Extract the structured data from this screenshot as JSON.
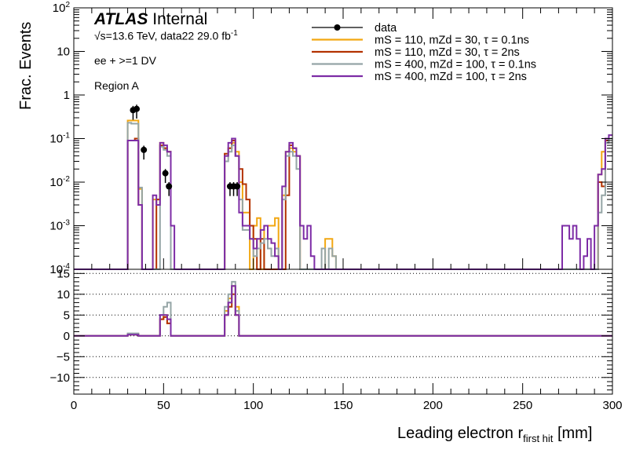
{
  "annotations": {
    "atlas": "ATLAS",
    "internal": "Internal",
    "sqrt_s": "√s=13.6 TeV, data22 29.0 fb",
    "lumi_sup": "-1",
    "selection": "ee + >=1 DV",
    "region": "Region A"
  },
  "legend": [
    {
      "text": "data",
      "color": "#000000",
      "kind": "marker"
    },
    {
      "text": "mS = 110, mZd = 30, τ = 0.1ns",
      "color": "#f2a712",
      "kind": "line"
    },
    {
      "text": "mS = 110, mZd = 30, τ = 2ns",
      "color": "#b33200",
      "kind": "line"
    },
    {
      "text": "mS = 400, mZd = 100, τ = 0.1ns",
      "color": "#95a5a6",
      "kind": "line"
    },
    {
      "text": "mS = 400, mZd = 100, τ = 2ns",
      "color": "#7d2ca6",
      "kind": "line"
    }
  ],
  "chart_data": [
    {
      "type": "line",
      "subtype": "step-histogram",
      "ylabel": "Frac. Events",
      "xlim": [
        0,
        300
      ],
      "ylim": [
        0.0001,
        100
      ],
      "yscale": "log",
      "bin_width": 2,
      "y_ticks": [
        "10^-4",
        "10^-3",
        "10^-2",
        "10^-1",
        "1",
        "10",
        "10^2"
      ],
      "data_points": [
        {
          "x": 32,
          "y": 0.45
        },
        {
          "x": 34,
          "y": 0.48
        },
        {
          "x": 38,
          "y": 0.055
        },
        {
          "x": 50,
          "y": 0.016
        },
        {
          "x": 52,
          "y": 0.008
        },
        {
          "x": 86,
          "y": 0.008
        },
        {
          "x": 88,
          "y": 0.008
        },
        {
          "x": 90,
          "y": 0.008
        }
      ],
      "series": [
        {
          "name": "mS = 110, mZd = 30, τ = 0.1ns",
          "color": "#f2a712",
          "bins": [
            [
              30,
              0.26
            ],
            [
              32,
              0.26
            ],
            [
              34,
              0.26
            ],
            [
              36,
              0.007
            ],
            [
              44,
              0.004
            ],
            [
              46,
              0.004
            ],
            [
              48,
              0.08
            ],
            [
              50,
              0.06
            ],
            [
              52,
              0.05
            ],
            [
              84,
              0.04
            ],
            [
              86,
              0.06
            ],
            [
              88,
              0.08
            ],
            [
              90,
              0.05
            ],
            [
              92,
              0.01
            ],
            [
              94,
              0.002
            ],
            [
              96,
              0.002
            ],
            [
              100,
              0.001
            ],
            [
              102,
              0.0015
            ],
            [
              106,
              0.001
            ],
            [
              108,
              0.001
            ],
            [
              110,
              0.001
            ],
            [
              112,
              0.0015
            ],
            [
              116,
              0.005
            ],
            [
              118,
              0.05
            ],
            [
              120,
              0.06
            ],
            [
              122,
              0.05
            ],
            [
              124,
              0.04
            ],
            [
              140,
              0.0005
            ],
            [
              142,
              0.0005
            ],
            [
              144,
              0.0002
            ],
            [
              292,
              0.015
            ],
            [
              294,
              0.05
            ],
            [
              296,
              0.1
            ],
            [
              298,
              0.1
            ]
          ]
        },
        {
          "name": "mS = 110, mZd = 30, τ = 2ns",
          "color": "#b33200",
          "bins": [
            [
              30,
              0.09
            ],
            [
              32,
              0.09
            ],
            [
              34,
              0.1
            ],
            [
              36,
              0.003
            ],
            [
              46,
              0.004
            ],
            [
              48,
              0.07
            ],
            [
              50,
              0.06
            ],
            [
              52,
              0.05
            ],
            [
              84,
              0.045
            ],
            [
              86,
              0.06
            ],
            [
              88,
              0.09
            ],
            [
              90,
              0.04
            ],
            [
              92,
              0.02
            ],
            [
              94,
              0.009
            ],
            [
              96,
              0.004
            ],
            [
              98,
              0.001
            ],
            [
              100,
              0.0005
            ],
            [
              104,
              0.0005
            ],
            [
              118,
              0.005
            ],
            [
              120,
              0.07
            ],
            [
              122,
              0.06
            ],
            [
              124,
              0.04
            ],
            [
              292,
              0.01
            ],
            [
              294,
              0.008
            ],
            [
              296,
              0.09
            ],
            [
              298,
              0.1
            ]
          ]
        },
        {
          "name": "mS = 400, mZd = 100, τ = 0.1ns",
          "color": "#95a5a6",
          "bins": [
            [
              30,
              0.23
            ],
            [
              32,
              0.22
            ],
            [
              34,
              0.22
            ],
            [
              36,
              0.0075
            ],
            [
              48,
              0.065
            ],
            [
              50,
              0.055
            ],
            [
              52,
              0.04
            ],
            [
              84,
              0.03
            ],
            [
              86,
              0.05
            ],
            [
              88,
              0.07
            ],
            [
              90,
              0.04
            ],
            [
              92,
              0.004
            ],
            [
              94,
              0.0008
            ],
            [
              96,
              0.0008
            ],
            [
              98,
              0.0005
            ],
            [
              100,
              0.0002
            ],
            [
              102,
              0.0003
            ],
            [
              104,
              0.0004
            ],
            [
              106,
              0.0005
            ],
            [
              108,
              0.0003
            ],
            [
              110,
              0.0002
            ],
            [
              112,
              0.0003
            ],
            [
              116,
              0.004
            ],
            [
              118,
              0.04
            ],
            [
              120,
              0.05
            ],
            [
              122,
              0.04
            ],
            [
              124,
              0.02
            ],
            [
              138,
              0.0003
            ],
            [
              142,
              0.0003
            ],
            [
              144,
              0.0002
            ],
            [
              292,
              0.002
            ],
            [
              294,
              0.005
            ],
            [
              296,
              0.08
            ],
            [
              298,
              0.1
            ]
          ]
        },
        {
          "name": "mS = 400, mZd = 100, τ = 2ns",
          "color": "#7d2ca6",
          "bins": [
            [
              30,
              0.09
            ],
            [
              32,
              0.09
            ],
            [
              34,
              0.09
            ],
            [
              36,
              0.003
            ],
            [
              44,
              0.005
            ],
            [
              46,
              0.003
            ],
            [
              48,
              0.08
            ],
            [
              50,
              0.07
            ],
            [
              52,
              0.05
            ],
            [
              54,
              0.001
            ],
            [
              84,
              0.04
            ],
            [
              86,
              0.08
            ],
            [
              88,
              0.1
            ],
            [
              90,
              0.04
            ],
            [
              92,
              0.002
            ],
            [
              94,
              0.001
            ],
            [
              96,
              0.001
            ],
            [
              98,
              0.0005
            ],
            [
              100,
              0.0003
            ],
            [
              102,
              0.0005
            ],
            [
              104,
              0.0008
            ],
            [
              106,
              0.001
            ],
            [
              108,
              0.0005
            ],
            [
              110,
              0.0004
            ],
            [
              112,
              0.0002
            ],
            [
              116,
              0.008
            ],
            [
              118,
              0.05
            ],
            [
              120,
              0.08
            ],
            [
              122,
              0.06
            ],
            [
              124,
              0.04
            ],
            [
              126,
              0.001
            ],
            [
              128,
              0.0005
            ],
            [
              130,
              0.001
            ],
            [
              132,
              0.0002
            ],
            [
              272,
              0.001
            ],
            [
              274,
              0.001
            ],
            [
              276,
              0.0005
            ],
            [
              278,
              0.001
            ],
            [
              280,
              0.0005
            ],
            [
              284,
              0.0002
            ],
            [
              286,
              0.0005
            ],
            [
              290,
              0.001
            ],
            [
              292,
              0.015
            ],
            [
              294,
              0.02
            ],
            [
              296,
              0.1
            ],
            [
              298,
              0.12
            ]
          ]
        }
      ]
    },
    {
      "type": "line",
      "subtype": "step-histogram",
      "xlabel": "Leading electron r",
      "xlabel_sub": "first hit",
      "xlabel_unit": "[mm]",
      "xlim": [
        0,
        300
      ],
      "ylim": [
        -14,
        16
      ],
      "x_ticks": [
        0,
        50,
        100,
        150,
        200,
        250,
        300
      ],
      "y_ticks": [
        -10,
        -5,
        0,
        5,
        10,
        15
      ],
      "grid_y": [
        -10,
        -5,
        0,
        5,
        10,
        15
      ],
      "series": [
        {
          "name": "mS = 110, mZd = 30, τ = 0.1ns",
          "color": "#f2a712",
          "bins": [
            [
              30,
              0.5
            ],
            [
              32,
              0.5
            ],
            [
              34,
              0.5
            ],
            [
              48,
              4
            ],
            [
              50,
              5
            ],
            [
              52,
              3
            ],
            [
              84,
              6
            ],
            [
              86,
              9
            ],
            [
              88,
              12
            ],
            [
              90,
              7
            ]
          ]
        },
        {
          "name": "mS = 110, mZd = 30, τ = 2ns",
          "color": "#b33200",
          "bins": [
            [
              30,
              0.3
            ],
            [
              32,
              0.3
            ],
            [
              34,
              0.3
            ],
            [
              48,
              4
            ],
            [
              50,
              4.5
            ],
            [
              52,
              3
            ],
            [
              84,
              5
            ],
            [
              86,
              7
            ],
            [
              88,
              10
            ],
            [
              90,
              5
            ]
          ]
        },
        {
          "name": "mS = 400, mZd = 100, τ = 0.1ns",
          "color": "#95a5a6",
          "bins": [
            [
              30,
              0.6
            ],
            [
              32,
              0.6
            ],
            [
              34,
              0.6
            ],
            [
              48,
              5
            ],
            [
              50,
              7
            ],
            [
              52,
              8
            ],
            [
              84,
              7
            ],
            [
              86,
              10
            ],
            [
              88,
              13
            ],
            [
              90,
              6
            ]
          ]
        },
        {
          "name": "mS = 400, mZd = 100, τ = 2ns",
          "color": "#7d2ca6",
          "bins": [
            [
              30,
              0.3
            ],
            [
              32,
              0.3
            ],
            [
              34,
              0.3
            ],
            [
              48,
              5
            ],
            [
              50,
              5
            ],
            [
              52,
              4
            ],
            [
              84,
              5
            ],
            [
              86,
              8
            ],
            [
              88,
              12
            ],
            [
              90,
              5
            ]
          ]
        }
      ]
    }
  ]
}
